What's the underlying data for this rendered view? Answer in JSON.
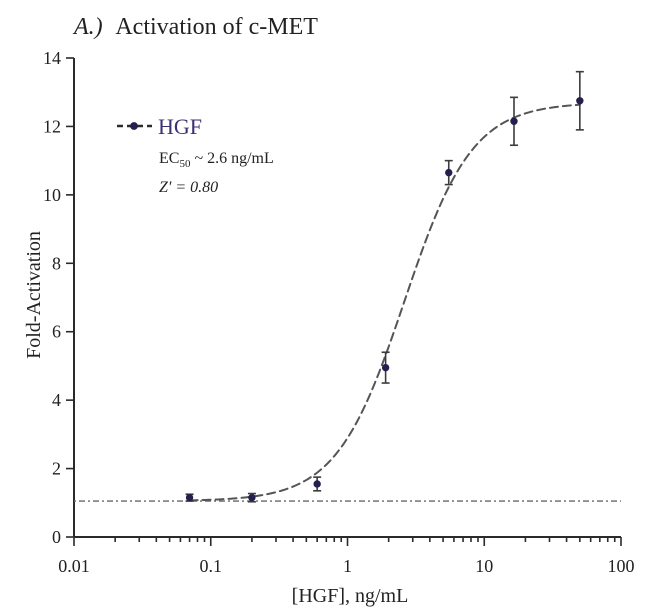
{
  "chart_data": {
    "type": "line",
    "title_prefix": "A.)",
    "title": "Activation of c-MET",
    "xlabel": "[HGF], ng/mL",
    "ylabel": "Fold-Activation",
    "xscale": "log",
    "xlim": [
      0.01,
      100
    ],
    "ylim": [
      0,
      14
    ],
    "xticks": [
      0.01,
      0.1,
      1,
      10,
      100
    ],
    "xtick_labels": [
      "0.01",
      "0.1",
      "1",
      "10",
      "100"
    ],
    "yticks": [
      0,
      2,
      4,
      6,
      8,
      10,
      12,
      14
    ],
    "ytick_labels": [
      "0",
      "2",
      "4",
      "6",
      "8",
      "10",
      "12",
      "14"
    ],
    "grid": false,
    "legend_position": "top-left",
    "series": [
      {
        "name": "HGF",
        "color": "#23204d",
        "x": [
          0.07,
          0.2,
          0.6,
          1.9,
          5.5,
          16.5,
          50
        ],
        "y": [
          1.15,
          1.15,
          1.55,
          4.95,
          10.65,
          12.15,
          12.75
        ],
        "error": [
          0.1,
          0.12,
          0.2,
          0.45,
          0.35,
          0.7,
          0.85
        ]
      }
    ],
    "fit_curve": {
      "style": "dashed",
      "model": "sigmoid",
      "bottom": 1.05,
      "top": 12.7,
      "ec50": 2.6,
      "hill": 1.75
    },
    "reference_line": {
      "y": 1.05,
      "style": "dash-dot"
    },
    "annotations": {
      "ec50_prefix": "EC",
      "ec50_subscript": "50",
      "ec50_suffix": " ~ 2.6 ng/mL",
      "zprime": "Z' = 0.80"
    }
  }
}
